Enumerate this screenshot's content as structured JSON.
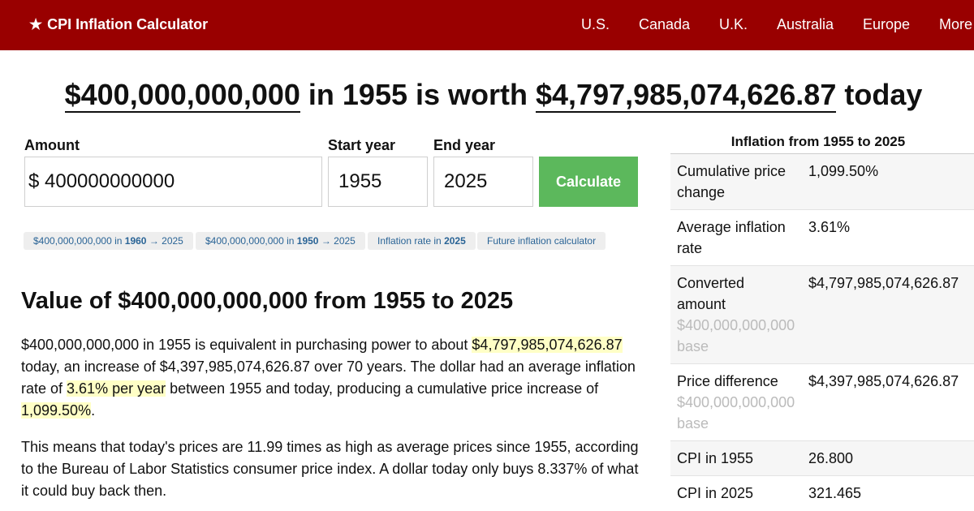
{
  "header": {
    "brand": "CPI Inflation Calculator",
    "brand_icon": "star-icon",
    "nav": [
      "U.S.",
      "Canada",
      "U.K.",
      "Australia",
      "Europe",
      "More"
    ],
    "bg_color": "#990000"
  },
  "headline": {
    "amount": "$400,000,000,000",
    "mid": " in 1955 is worth ",
    "result": "$4,797,985,074,626.87",
    "end": " today"
  },
  "form": {
    "amount_label": "Amount",
    "currency_symbol": "$",
    "amount_value": "400000000000",
    "start_label": "Start year",
    "start_value": "1955",
    "end_label": "End year",
    "end_value": "2025",
    "button": "Calculate",
    "button_color": "#5cb85c"
  },
  "quick_links": [
    {
      "pre": "$400,000,000,000 in ",
      "bold": "1960",
      "post": " → 2025"
    },
    {
      "pre": "$400,000,000,000 in ",
      "bold": "1950",
      "post": " → 2025"
    },
    {
      "pre": "Inflation rate in ",
      "bold": "2025",
      "post": ""
    },
    {
      "pre": "Future inflation calculator",
      "bold": "",
      "post": ""
    }
  ],
  "section": {
    "title": "Value of $400,000,000,000 from 1955 to 2025",
    "p1": {
      "a": "$400,000,000,000 in 1955 is equivalent in purchasing power to about ",
      "hl1": "$4,797,985,074,626.87",
      "b": " today, an increase of $4,397,985,074,626.87 over 70 years. The dollar had an average inflation rate of ",
      "hl2": "3.61% per year",
      "c": " between 1955 and today, producing a cumulative price increase of ",
      "hl3": "1,099.50%",
      "d": "."
    },
    "p2": "This means that today's prices are 11.99 times as high as average prices since 1955, according to the Bureau of Labor Statistics consumer price index. A dollar today only buys 8.337% of what it could buy back then."
  },
  "sidebar": {
    "title": "Inflation from 1955 to 2025",
    "rows": [
      {
        "label": "Cumulative price change",
        "sub": "",
        "value": "1,099.50%"
      },
      {
        "label": "Average inflation rate",
        "sub": "",
        "value": "3.61%"
      },
      {
        "label": "Converted amount",
        "sub": "$400,000,000,000 base",
        "value": "$4,797,985,074,626.87"
      },
      {
        "label": "Price difference",
        "sub": "$400,000,000,000 base",
        "value": "$4,397,985,074,626.87"
      },
      {
        "label": "CPI in 1955",
        "sub": "",
        "value": "26.800"
      },
      {
        "label": "CPI in 2025",
        "sub": "",
        "value": "321.465"
      }
    ]
  }
}
